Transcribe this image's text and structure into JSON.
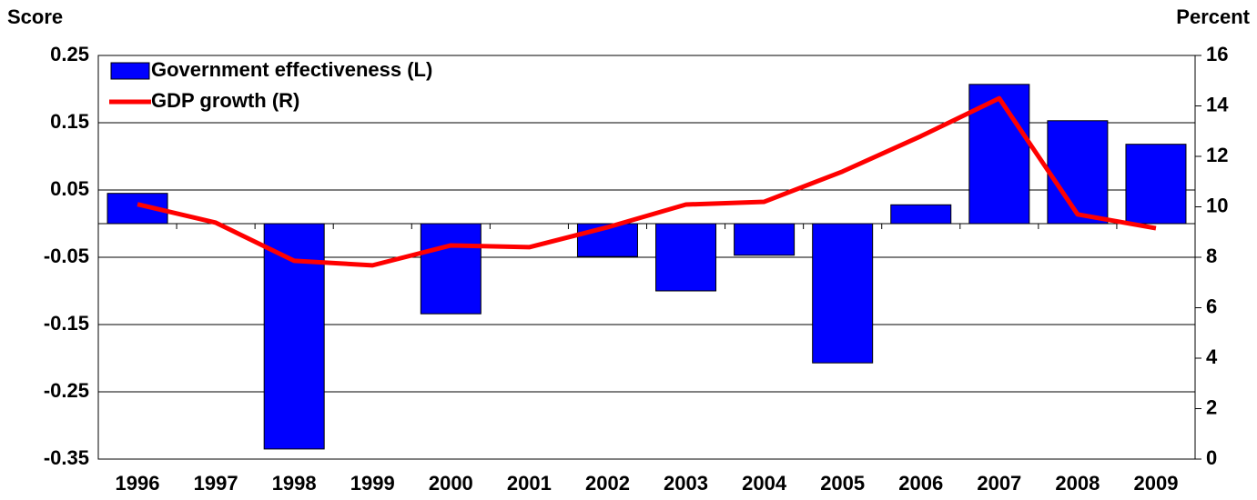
{
  "chart_data": {
    "type": "bar_line",
    "y_label": "Score",
    "y2_label": "Percent",
    "categories": [
      "1996",
      "1997",
      "1998",
      "1999",
      "2000",
      "2001",
      "2002",
      "2003",
      "2004",
      "2005",
      "2006",
      "2007",
      "2008",
      "2009"
    ],
    "series": [
      {
        "name": "Government  effectiveness (L)",
        "type": "bar",
        "color": "#0000ff",
        "axis": "y",
        "values": [
          0.045,
          0,
          -0.335,
          0,
          -0.134,
          0,
          -0.049,
          -0.1,
          -0.047,
          -0.207,
          0.028,
          0.207,
          0.153,
          0.118
        ]
      },
      {
        "name": "GDP growth (R)",
        "type": "line",
        "color": "#ff0000",
        "axis": "y2",
        "values": [
          10.1,
          9.37,
          7.86,
          7.68,
          8.47,
          8.4,
          9.19,
          10.09,
          10.2,
          11.4,
          12.8,
          14.3,
          9.7,
          9.15
        ]
      }
    ],
    "ylim": [
      -0.35,
      0.25
    ],
    "yticks": [
      0.25,
      0.15,
      0.05,
      -0.05,
      -0.15,
      -0.25,
      -0.35
    ],
    "y2lim": [
      0,
      16
    ],
    "y2ticks": [
      16,
      14,
      12,
      10,
      8,
      6,
      4,
      2,
      0
    ],
    "grid": true,
    "legend": "top-left"
  }
}
